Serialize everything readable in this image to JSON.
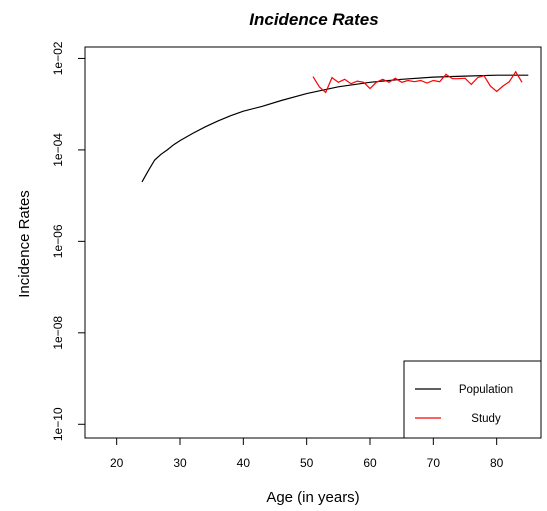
{
  "chart_data": {
    "type": "line",
    "title": "Incidence Rates",
    "xlabel": "Age (in years)",
    "ylabel": "Incidence Rates",
    "xlim": [
      15,
      87
    ],
    "ylim_log10": [
      -10.3,
      -1.75
    ],
    "y_scale": "log",
    "x_ticks": [
      20,
      30,
      40,
      50,
      60,
      70,
      80
    ],
    "x_tick_labels": [
      "20",
      "30",
      "40",
      "50",
      "60",
      "70",
      "80"
    ],
    "y_ticks": [
      1e-10,
      1e-08,
      1e-06,
      0.0001,
      0.01
    ],
    "y_tick_labels": [
      "1e−10",
      "1e−08",
      "1e−06",
      "1e−04",
      "1e−02"
    ],
    "legend_position": "bottom-right",
    "series": [
      {
        "name": "Population",
        "color": "#000000",
        "x": [
          24,
          25,
          26,
          27,
          28,
          29,
          30,
          32,
          34,
          36,
          38,
          40,
          43,
          46,
          50,
          55,
          60,
          65,
          70,
          75,
          80,
          85
        ],
        "y": [
          2e-05,
          3.5e-05,
          6e-05,
          8e-05,
          0.0001,
          0.00013,
          0.00016,
          0.00023,
          0.00032,
          0.00043,
          0.00056,
          0.0007,
          0.0009,
          0.0012,
          0.0017,
          0.0024,
          0.003,
          0.0035,
          0.0039,
          0.0041,
          0.0043,
          0.0043
        ]
      },
      {
        "name": "Study",
        "color": "#ff0000",
        "x": [
          51,
          52,
          53,
          54,
          55,
          56,
          57,
          58,
          59,
          60,
          61,
          62,
          63,
          64,
          65,
          66,
          67,
          68,
          69,
          70,
          71,
          72,
          73,
          74,
          75,
          76,
          77,
          78,
          79,
          80,
          81,
          82,
          83,
          84
        ],
        "y": [
          0.004,
          0.0024,
          0.0018,
          0.0038,
          0.003,
          0.0035,
          0.0028,
          0.0032,
          0.003,
          0.0022,
          0.003,
          0.0035,
          0.003,
          0.0037,
          0.003,
          0.0033,
          0.0031,
          0.0033,
          0.0029,
          0.0033,
          0.0031,
          0.0045,
          0.0036,
          0.0036,
          0.0037,
          0.0027,
          0.0038,
          0.0042,
          0.0025,
          0.0019,
          0.0025,
          0.0031,
          0.0051,
          0.003
        ]
      }
    ]
  }
}
